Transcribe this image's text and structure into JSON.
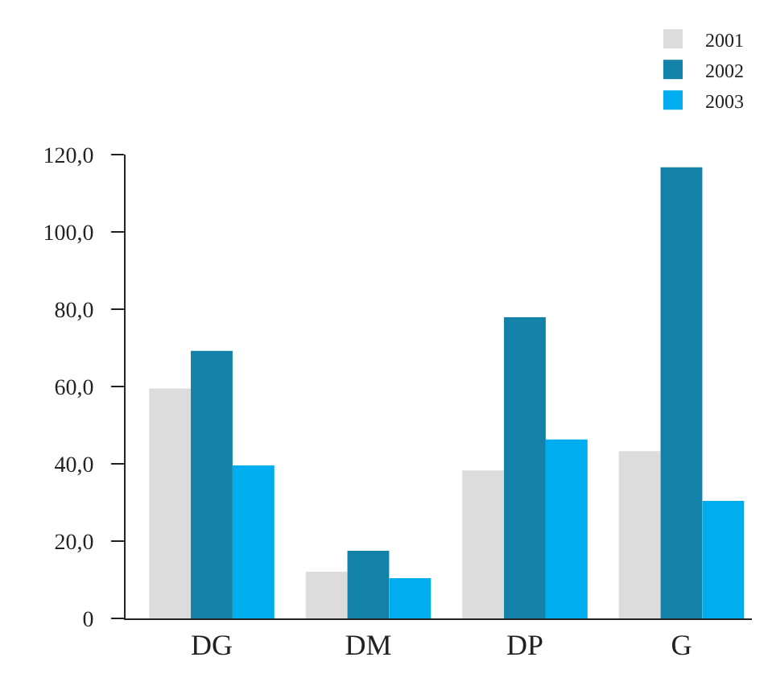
{
  "chart_data": {
    "type": "bar",
    "categories": [
      "DG",
      "DM",
      "DP",
      "G"
    ],
    "series": [
      {
        "name": "2001",
        "color": "#dcdcdc",
        "values": [
          59.5,
          12.1,
          38.3,
          43.3
        ]
      },
      {
        "name": "2002",
        "color": "#1282a8",
        "values": [
          69.2,
          17.5,
          77.9,
          116.7
        ]
      },
      {
        "name": "2003",
        "color": "#00aeef",
        "values": [
          39.6,
          10.4,
          46.3,
          30.4
        ]
      }
    ],
    "ylim": [
      0,
      120
    ],
    "yticks": [
      0,
      {
        "value": 20,
        "label": "20,0"
      },
      {
        "value": 40,
        "label": "40,0"
      },
      {
        "value": 60,
        "label": "60,0"
      },
      {
        "value": 80,
        "label": "80,0"
      },
      {
        "value": 100,
        "label": "100,0"
      },
      {
        "value": 120,
        "label": "120,0"
      }
    ],
    "legend": "top right"
  }
}
